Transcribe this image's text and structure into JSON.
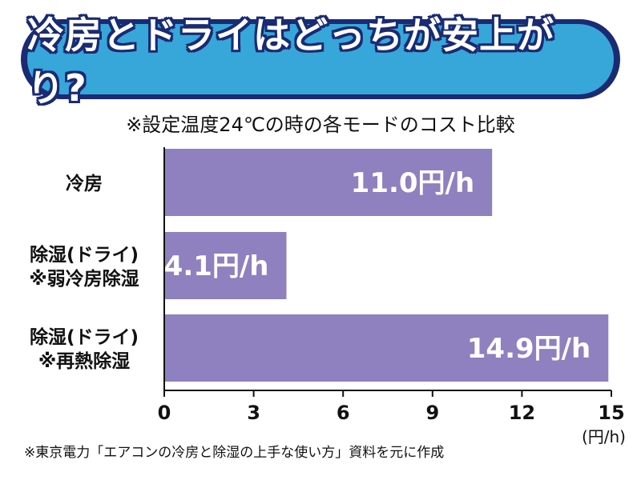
{
  "title": "冷房とドライはどっちが安上がり?",
  "subtitle": "※設定温度24℃の時の各モードのコスト比較",
  "source_note": "※東京電力「エアコンの冷房と除湿の上手な使い方」資料を元に作成",
  "colors": {
    "bar": "#8f80bf",
    "title_fill": "#37a7da",
    "title_outline": "#1a2a73"
  },
  "chart_data": {
    "type": "bar",
    "orientation": "horizontal",
    "categories": [
      [
        "冷房"
      ],
      [
        "除湿(ドライ)",
        "※弱冷房除湿"
      ],
      [
        "除湿(ドライ)",
        "※再熱除湿"
      ]
    ],
    "values": [
      11.0,
      4.1,
      14.9
    ],
    "value_labels": [
      "11.0円/h",
      "4.1円/h",
      "14.9円/h"
    ],
    "xlim": [
      0,
      15
    ],
    "xticks": [
      0,
      3,
      6,
      9,
      12,
      15
    ],
    "unit_label": "(円/h)",
    "grid": false
  }
}
